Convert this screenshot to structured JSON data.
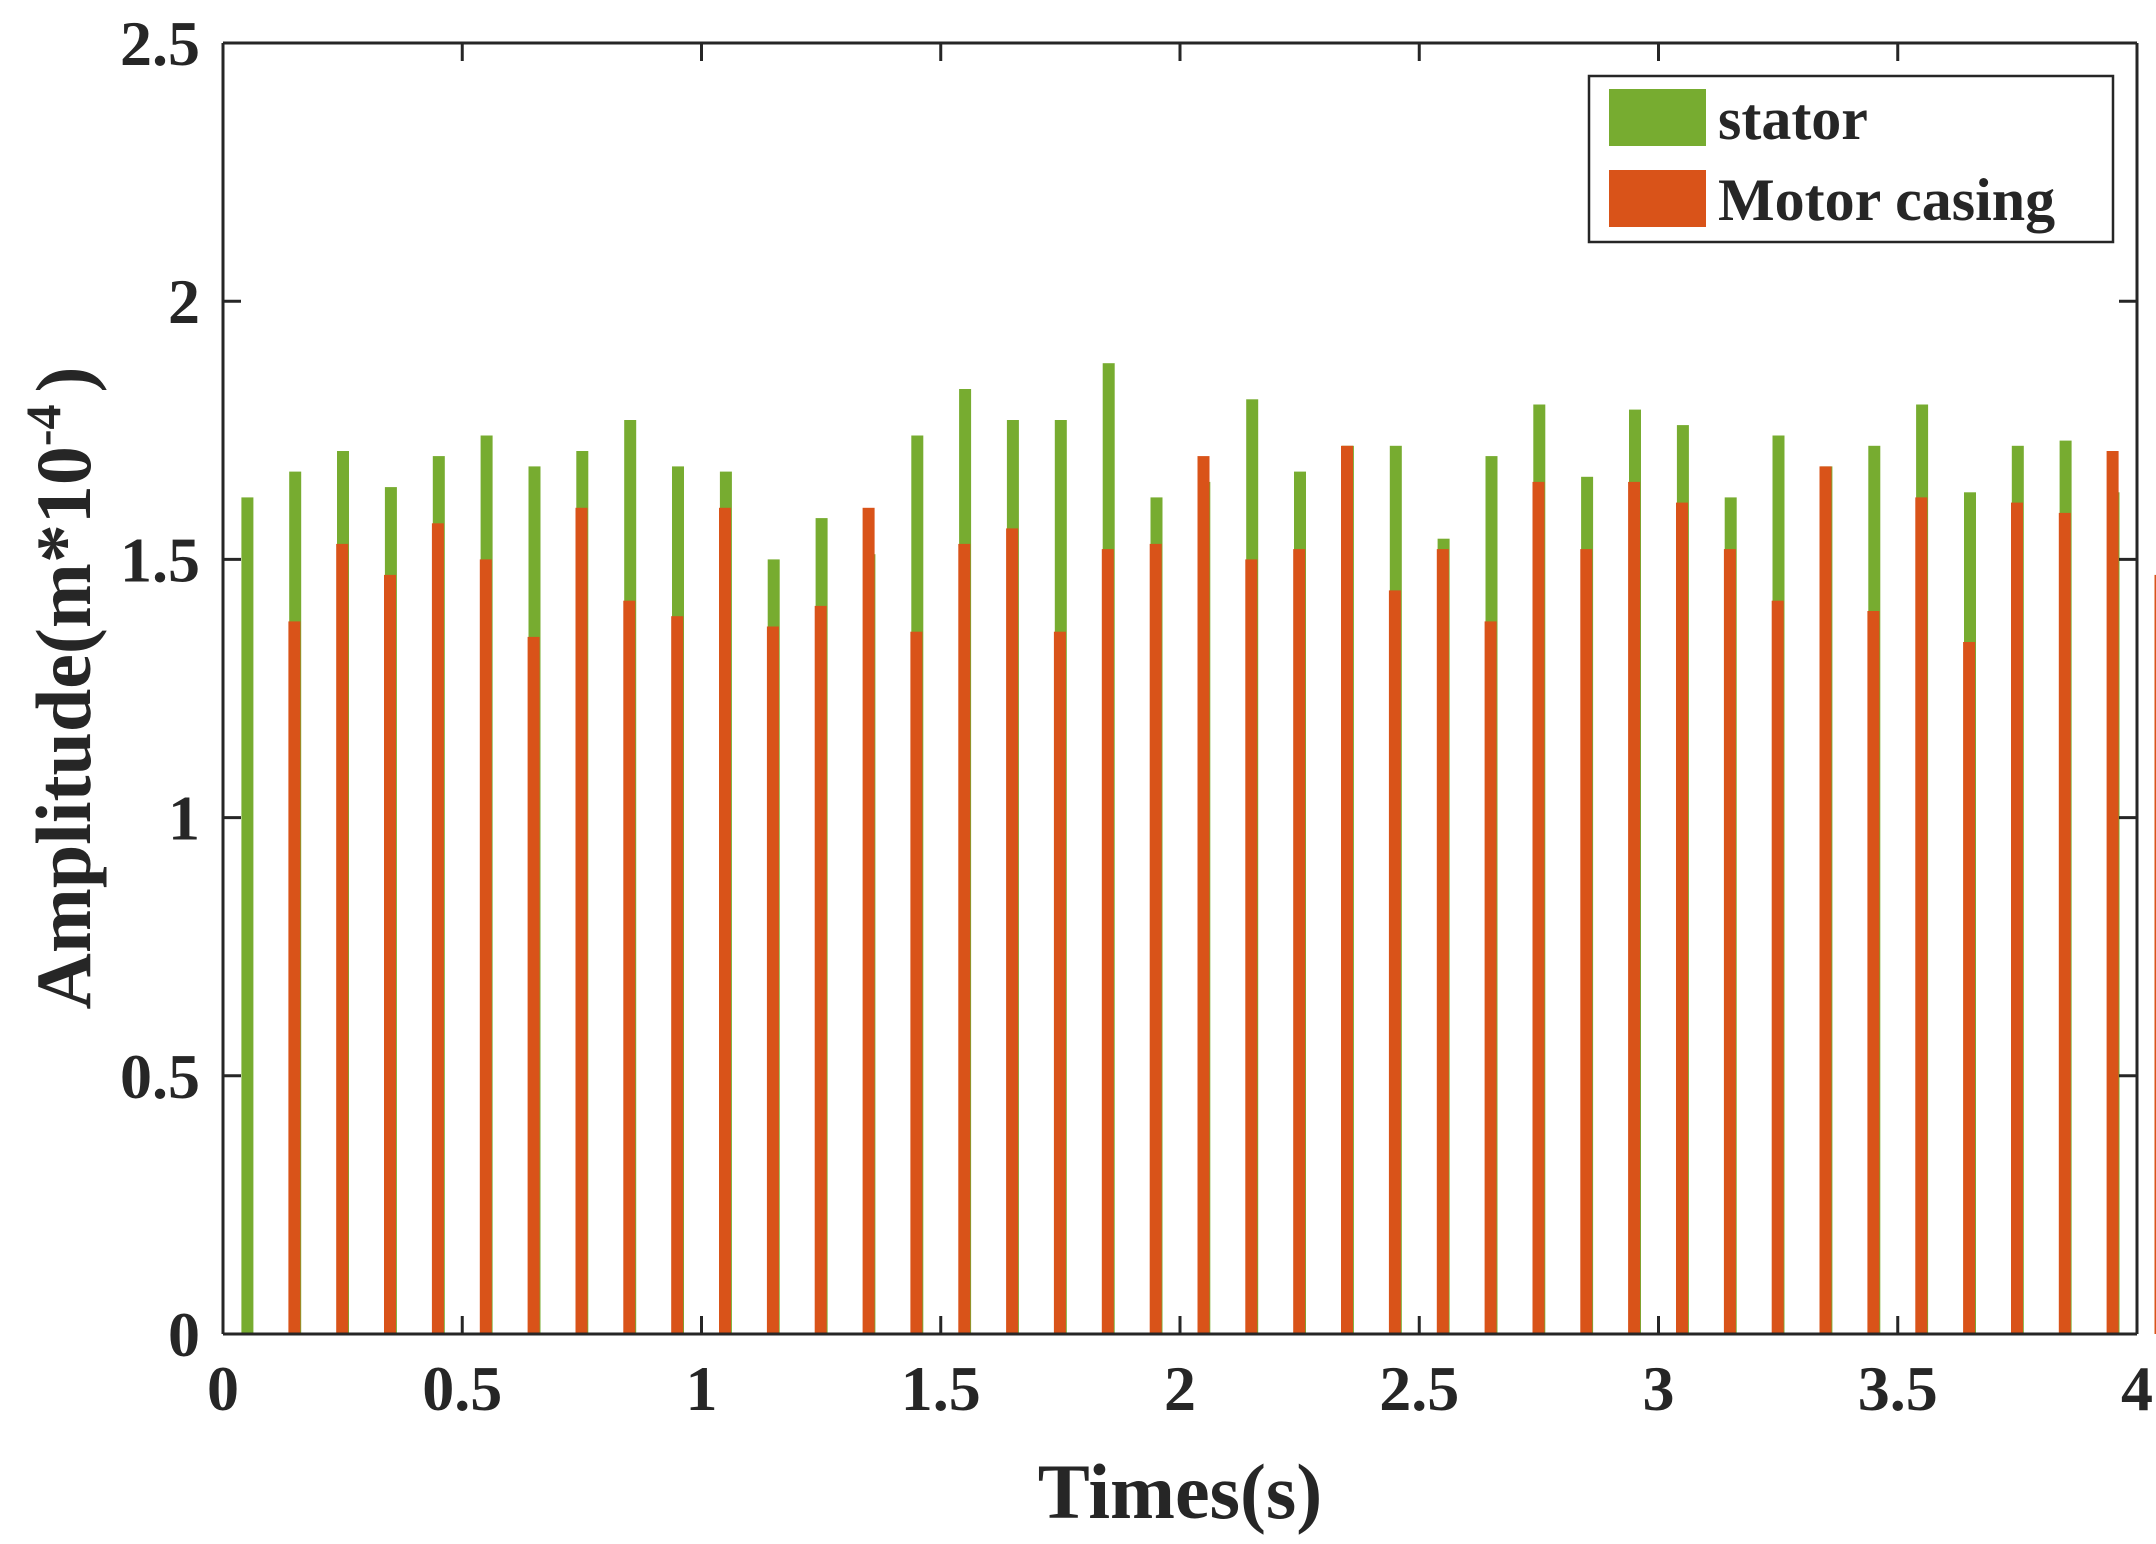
{
  "chart_data": {
    "type": "bar",
    "title": "",
    "xlabel": "Times(s)",
    "ylabel_main": "Amplitude(m*10",
    "ylabel_exponent": "-4",
    "ylabel_close": ")",
    "xlim": [
      0,
      4
    ],
    "ylim": [
      0,
      2.5
    ],
    "grid": false,
    "legend_position": "top-right",
    "x_ticks": [
      0,
      0.5,
      1,
      1.5,
      2,
      2.5,
      3,
      3.5,
      4
    ],
    "x_tick_labels": [
      "0",
      "0.5",
      "1",
      "1.5",
      "2",
      "2.5",
      "3",
      "3.5",
      "4"
    ],
    "y_ticks": [
      0,
      0.5,
      1,
      1.5,
      2,
      2.5
    ],
    "y_tick_labels": [
      "0",
      "0.5",
      "1",
      "1.5",
      "2",
      "2.5"
    ],
    "x": [
      0.1,
      0.2,
      0.3,
      0.4,
      0.5,
      0.6,
      0.7,
      0.8,
      0.9,
      1.0,
      1.1,
      1.2,
      1.3,
      1.4,
      1.5,
      1.6,
      1.7,
      1.8,
      1.9,
      2.0,
      2.1,
      2.2,
      2.3,
      2.4,
      2.5,
      2.6,
      2.7,
      2.8,
      2.9,
      3.0,
      3.1,
      3.2,
      3.3,
      3.4,
      3.5,
      3.6,
      3.7,
      3.8,
      3.9,
      4.0
    ],
    "series": [
      {
        "name": "stator",
        "color": "#77AC30",
        "values": [
          1.62,
          1.67,
          1.71,
          1.64,
          1.7,
          1.74,
          1.68,
          1.71,
          1.77,
          1.68,
          1.67,
          1.5,
          1.58,
          1.51,
          1.74,
          1.83,
          1.77,
          1.77,
          1.88,
          1.62,
          1.65,
          1.81,
          1.67,
          1.72,
          1.72,
          1.54,
          1.7,
          1.8,
          1.66,
          1.79,
          1.76,
          1.62,
          1.74,
          1.68,
          1.72,
          1.8,
          1.63,
          1.72,
          1.73,
          1.63
        ]
      },
      {
        "name": "Motor casing",
        "color": "#D95319",
        "values": [
          1.38,
          1.53,
          1.47,
          1.57,
          1.5,
          1.35,
          1.6,
          1.42,
          1.39,
          1.6,
          1.37,
          1.41,
          1.6,
          1.36,
          1.53,
          1.56,
          1.36,
          1.52,
          1.53,
          1.7,
          1.5,
          1.52,
          1.72,
          1.44,
          1.52,
          1.38,
          1.65,
          1.52,
          1.65,
          1.61,
          1.52,
          1.42,
          1.68,
          1.4,
          1.62,
          1.34,
          1.61,
          1.59,
          1.71,
          1.47
        ]
      }
    ]
  }
}
